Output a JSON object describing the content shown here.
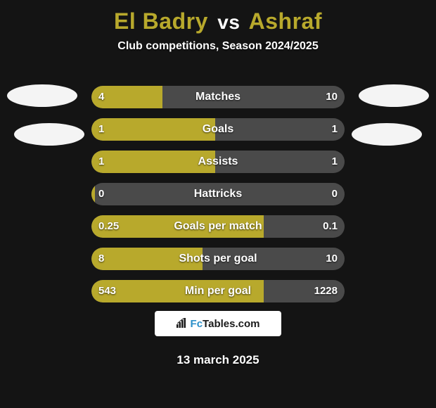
{
  "colors": {
    "background": "#141414",
    "title_players": "#b8a92c",
    "title_vs": "#ffffff",
    "subtitle": "#ffffff",
    "row_label": "#ffffff",
    "row_value": "#ffffff",
    "row_fill_left": "#b8a92c",
    "row_bg": "#4a4a4a",
    "side_ellipse": "#f4f4f4",
    "logo_bg": "#ffffff",
    "logo_text": "#1a1a1a",
    "logo_highlight": "#2a8fc9",
    "date": "#ffffff"
  },
  "title": {
    "player1": "El Badry",
    "vs": "vs",
    "player2": "Ashraf"
  },
  "subtitle": "Club competitions, Season 2024/2025",
  "rows": [
    {
      "label": "Matches",
      "left": "4",
      "right": "10",
      "fill_pct": 28
    },
    {
      "label": "Goals",
      "left": "1",
      "right": "1",
      "fill_pct": 49
    },
    {
      "label": "Assists",
      "left": "1",
      "right": "1",
      "fill_pct": 49
    },
    {
      "label": "Hattricks",
      "left": "0",
      "right": "0",
      "fill_pct": 1.5
    },
    {
      "label": "Goals per match",
      "left": "0.25",
      "right": "0.1",
      "fill_pct": 68
    },
    {
      "label": "Shots per goal",
      "left": "8",
      "right": "10",
      "fill_pct": 44
    },
    {
      "label": "Min per goal",
      "left": "543",
      "right": "1228",
      "fill_pct": 68
    }
  ],
  "logo": {
    "prefix": "Fc",
    "suffix": "Tables.com"
  },
  "date": "13 march 2025"
}
